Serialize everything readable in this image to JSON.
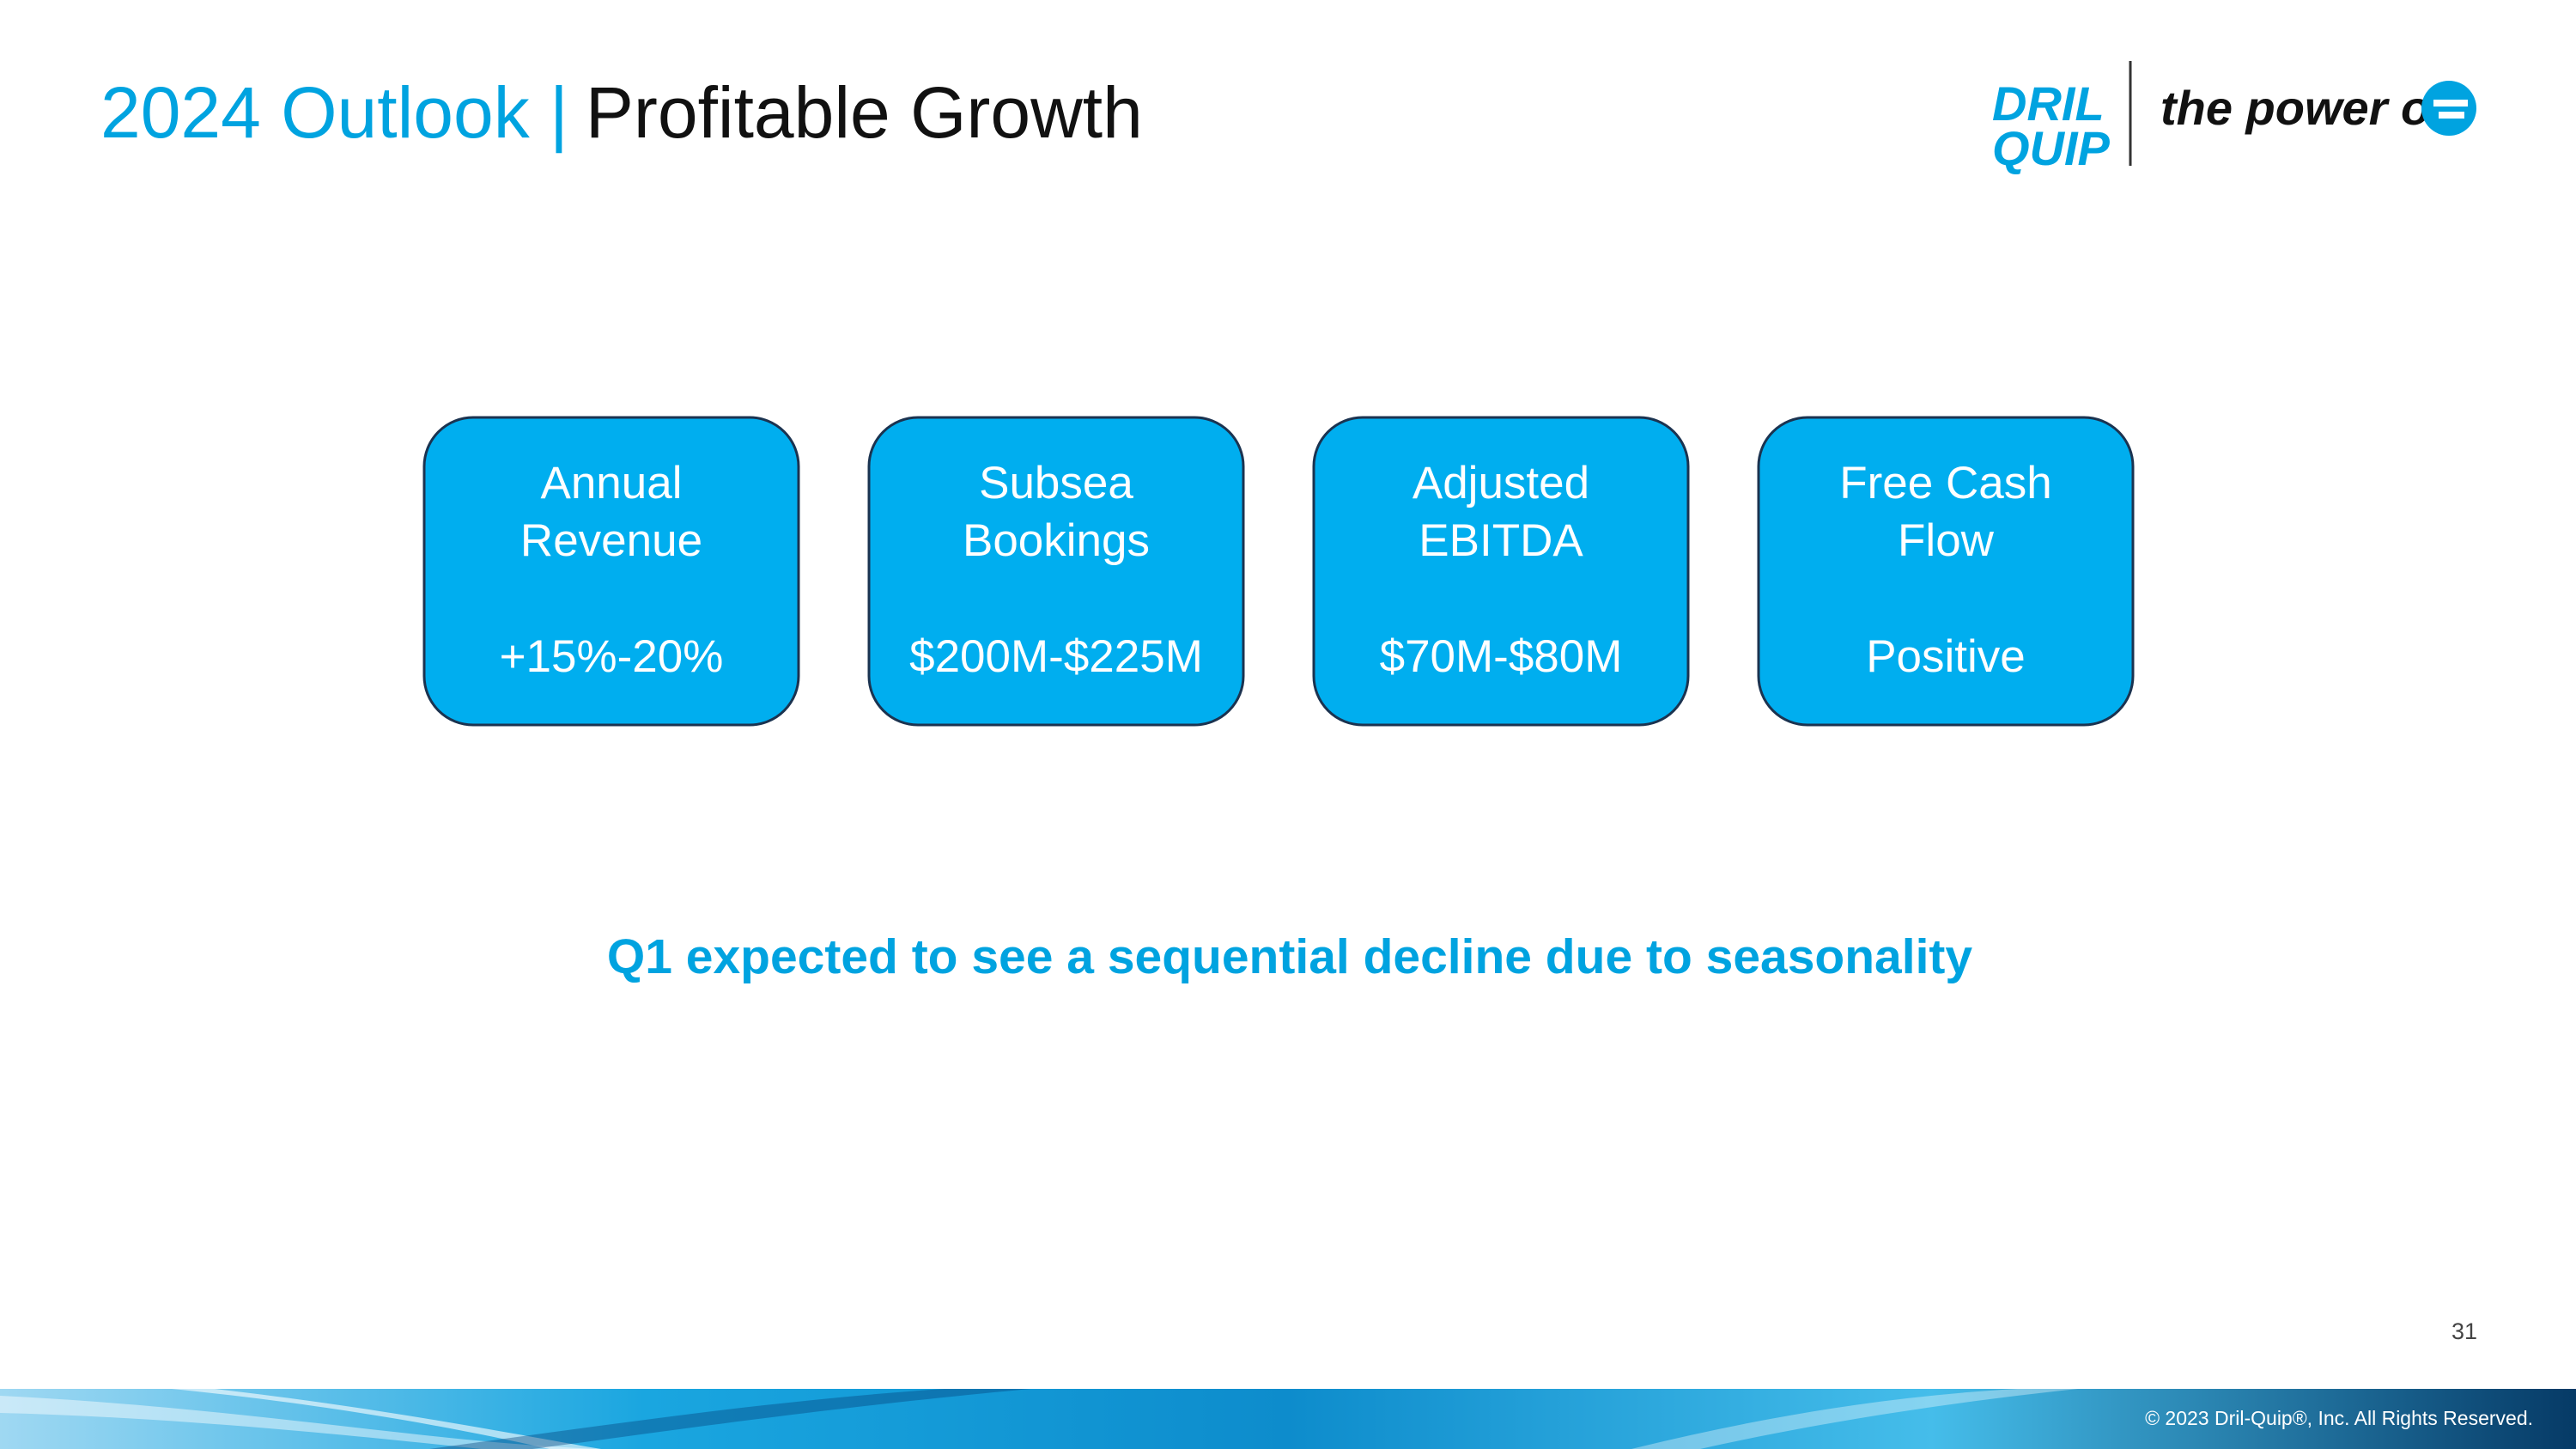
{
  "header": {
    "title_lead": "2024 Outlook |",
    "title_main": "Profitable Growth"
  },
  "logo": {
    "brand_top": "DRIL",
    "brand_bottom": "QUIP",
    "tagline": "the power of"
  },
  "boxes": [
    {
      "title": [
        "Annual",
        "Revenue"
      ],
      "value": "+15%-20%"
    },
    {
      "title": [
        "Subsea",
        "Bookings"
      ],
      "value": "$200M-$225M"
    },
    {
      "title": [
        "Adjusted",
        "EBITDA"
      ],
      "value": "$70M-$80M"
    },
    {
      "title": [
        "Free Cash",
        "Flow"
      ],
      "value": "Positive"
    }
  ],
  "note": "Q1 expected to see a sequential decline due to seasonality",
  "page_number": "31",
  "footer": {
    "copyright": "© 2023 Dril-Quip®, Inc. All Rights Reserved."
  }
}
